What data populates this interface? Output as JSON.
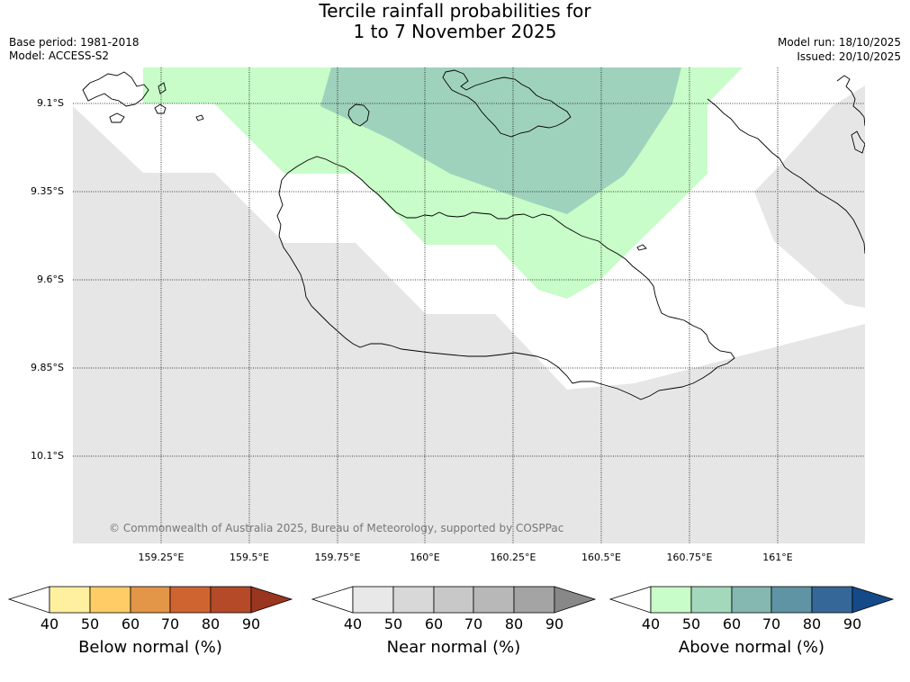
{
  "title_line1": "Tercile rainfall probabilities for",
  "title_line2": "1 to 7 November 2025",
  "meta_left": {
    "base_period": "Base period: 1981-2018",
    "model": "Model: ACCESS-S2"
  },
  "meta_right": {
    "model_run": "Model run: 18/10/2025",
    "issued": "Issued: 20/10/2025"
  },
  "lat_labels": [
    "9.1°S",
    "9.35°S",
    "9.6°S",
    "9.85°S",
    "10.1°S"
  ],
  "lon_labels": [
    "159.25°E",
    "159.5°E",
    "159.75°E",
    "160°E",
    "160.25°E",
    "160.5°E",
    "160.75°E",
    "161°E"
  ],
  "copyright": "© Commonwealth of Australia 2025, Bureau of Meteorology, supported by COSPPac",
  "colorbars": [
    {
      "label": "Below normal (%)",
      "ticks": [
        "40",
        "50",
        "60",
        "70",
        "80",
        "90"
      ],
      "colors": [
        "#ffffff",
        "#fff0a0",
        "#ffcc66",
        "#e39548",
        "#d06430",
        "#b44a28",
        "#9a3520"
      ]
    },
    {
      "label": "Near normal (%)",
      "ticks": [
        "40",
        "50",
        "60",
        "70",
        "80",
        "90"
      ],
      "colors": [
        "#ffffff",
        "#e8e8e8",
        "#d8d8d8",
        "#c8c8c8",
        "#b8b8b8",
        "#a4a4a4",
        "#888888"
      ]
    },
    {
      "label": "Above normal (%)",
      "ticks": [
        "40",
        "50",
        "60",
        "70",
        "80",
        "90"
      ],
      "colors": [
        "#ffffff",
        "#c8fcc8",
        "#a4d8bc",
        "#84b8b0",
        "#5e94a4",
        "#356898",
        "#144a88"
      ]
    }
  ],
  "map_colors": {
    "near_normal_40_50": "#e6e6e6",
    "above_normal_40_50": "#c8fcc8",
    "above_normal_50_60": "#9fd2bc",
    "coastline": "#000000"
  }
}
